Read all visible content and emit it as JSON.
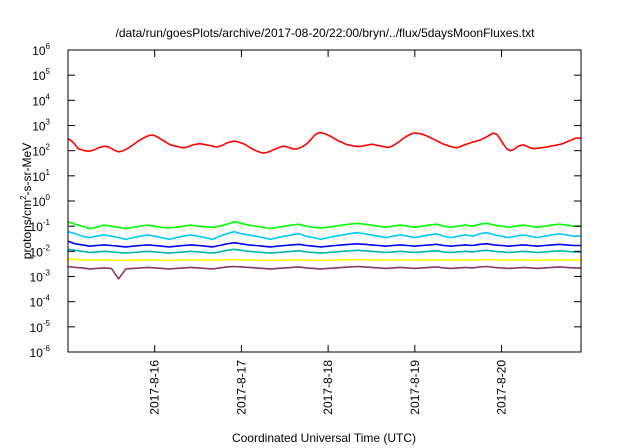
{
  "chart_data": {
    "type": "line",
    "title": "/data/run/goesPlots/archive/2017-08-20/22:00/bryn/../flux/5daysMoonFluxes.txt",
    "xlabel": "Coordinated Universal Time (UTC)",
    "ylabel": {
      "base": "protons/cm",
      "sup": "2",
      "rest": "-s-sr-MeV"
    },
    "x_range": [
      "2017-08-15 00:00",
      "2017-08-20 22:00"
    ],
    "x_ticks": [
      "2017-8-16",
      "2017-8-17",
      "2017-8-18",
      "2017-8-19",
      "2017-8-20"
    ],
    "y_scale": "log",
    "y_range": [
      1e-06,
      1000000.0
    ],
    "y_ticks": [
      {
        "base": "10",
        "exp": "-6",
        "value": 1e-06
      },
      {
        "base": "10",
        "exp": "-5",
        "value": 1e-05
      },
      {
        "base": "10",
        "exp": "-4",
        "value": 0.0001
      },
      {
        "base": "10",
        "exp": "-3",
        "value": 0.001
      },
      {
        "base": "10",
        "exp": "-2",
        "value": 0.01
      },
      {
        "base": "10",
        "exp": "-1",
        "value": 0.1
      },
      {
        "base": "10",
        "exp": "0",
        "value": 1
      },
      {
        "base": "10",
        "exp": "1",
        "value": 10
      },
      {
        "base": "10",
        "exp": "2",
        "value": 100
      },
      {
        "base": "10",
        "exp": "3",
        "value": 1000
      },
      {
        "base": "10",
        "exp": "4",
        "value": 10000
      },
      {
        "base": "10",
        "exp": "5",
        "value": 100000
      },
      {
        "base": "10",
        "exp": "6",
        "value": 1000000
      }
    ],
    "grid": false,
    "legend": "none",
    "series": [
      {
        "color": "#ff0000",
        "values": [
          300,
          250,
          180,
          120,
          110,
          100,
          95,
          100,
          110,
          130,
          140,
          150,
          140,
          120,
          100,
          90,
          95,
          110,
          130,
          160,
          200,
          250,
          300,
          350,
          400,
          420,
          380,
          320,
          260,
          220,
          180,
          160,
          150,
          140,
          130,
          135,
          150,
          170,
          180,
          190,
          180,
          170,
          160,
          150,
          140,
          150,
          170,
          200,
          220,
          240,
          230,
          210,
          190,
          160,
          130,
          110,
          95,
          85,
          80,
          85,
          95,
          110,
          125,
          140,
          150,
          140,
          125,
          115,
          120,
          135,
          160,
          200,
          280,
          400,
          500,
          520,
          480,
          420,
          360,
          300,
          250,
          220,
          190,
          170,
          160,
          150,
          145,
          150,
          160,
          170,
          180,
          170,
          160,
          150,
          140,
          135,
          150,
          180,
          220,
          280,
          350,
          420,
          480,
          500,
          480,
          450,
          400,
          350,
          300,
          260,
          220,
          190,
          170,
          150,
          140,
          130,
          140,
          160,
          180,
          200,
          220,
          240,
          260,
          300,
          350,
          420,
          500,
          450,
          300,
          180,
          120,
          100,
          110,
          140,
          160,
          170,
          150,
          130,
          120,
          125,
          130,
          135,
          140,
          150,
          160,
          170,
          180,
          200,
          230,
          260,
          300,
          320,
          310
        ]
      },
      {
        "color": "#00ff00",
        "values": [
          0.15,
          0.12,
          0.1,
          0.08,
          0.09,
          0.11,
          0.1,
          0.09,
          0.08,
          0.09,
          0.1,
          0.11,
          0.1,
          0.09,
          0.085,
          0.09,
          0.1,
          0.11,
          0.1,
          0.095,
          0.09,
          0.1,
          0.12,
          0.15,
          0.13,
          0.11,
          0.1,
          0.09,
          0.08,
          0.09,
          0.1,
          0.11,
          0.12,
          0.1,
          0.09,
          0.085,
          0.09,
          0.1,
          0.11,
          0.12,
          0.13,
          0.12,
          0.11,
          0.1,
          0.09,
          0.1,
          0.11,
          0.1,
          0.09,
          0.1,
          0.11,
          0.12,
          0.1,
          0.09,
          0.1,
          0.11,
          0.1,
          0.12,
          0.13,
          0.11,
          0.1,
          0.09,
          0.1,
          0.11,
          0.1,
          0.09,
          0.1,
          0.11,
          0.12,
          0.11,
          0.1,
          0.1
        ]
      },
      {
        "color": "#00c8ff",
        "values": [
          0.06,
          0.05,
          0.04,
          0.035,
          0.04,
          0.045,
          0.04,
          0.035,
          0.03,
          0.035,
          0.04,
          0.045,
          0.04,
          0.035,
          0.03,
          0.035,
          0.04,
          0.045,
          0.04,
          0.035,
          0.03,
          0.04,
          0.05,
          0.06,
          0.05,
          0.045,
          0.04,
          0.035,
          0.03,
          0.035,
          0.04,
          0.045,
          0.05,
          0.04,
          0.035,
          0.03,
          0.035,
          0.04,
          0.045,
          0.05,
          0.055,
          0.05,
          0.045,
          0.04,
          0.035,
          0.04,
          0.045,
          0.04,
          0.035,
          0.04,
          0.045,
          0.05,
          0.04,
          0.035,
          0.04,
          0.045,
          0.04,
          0.05,
          0.055,
          0.045,
          0.04,
          0.035,
          0.04,
          0.045,
          0.04,
          0.035,
          0.04,
          0.045,
          0.05,
          0.045,
          0.04,
          0.04
        ]
      },
      {
        "color": "#0000ff",
        "values": [
          0.025,
          0.02,
          0.018,
          0.016,
          0.017,
          0.018,
          0.017,
          0.016,
          0.015,
          0.016,
          0.017,
          0.018,
          0.017,
          0.016,
          0.015,
          0.016,
          0.017,
          0.018,
          0.017,
          0.016,
          0.015,
          0.017,
          0.02,
          0.022,
          0.02,
          0.018,
          0.017,
          0.016,
          0.015,
          0.016,
          0.017,
          0.018,
          0.019,
          0.017,
          0.016,
          0.015,
          0.016,
          0.017,
          0.018,
          0.019,
          0.02,
          0.019,
          0.018,
          0.017,
          0.016,
          0.017,
          0.018,
          0.017,
          0.016,
          0.017,
          0.018,
          0.019,
          0.017,
          0.016,
          0.017,
          0.018,
          0.017,
          0.019,
          0.02,
          0.018,
          0.017,
          0.016,
          0.017,
          0.018,
          0.017,
          0.016,
          0.017,
          0.018,
          0.019,
          0.018,
          0.017,
          0.017
        ]
      },
      {
        "color": "#00b4b4",
        "values": [
          0.012,
          0.011,
          0.01,
          0.009,
          0.0095,
          0.01,
          0.0095,
          0.009,
          0.0085,
          0.009,
          0.0095,
          0.01,
          0.0095,
          0.009,
          0.0085,
          0.009,
          0.0095,
          0.01,
          0.0095,
          0.009,
          0.0085,
          0.0095,
          0.011,
          0.012,
          0.011,
          0.01,
          0.0095,
          0.009,
          0.0085,
          0.009,
          0.0095,
          0.01,
          0.0105,
          0.0095,
          0.009,
          0.0085,
          0.009,
          0.0095,
          0.01,
          0.0105,
          0.011,
          0.0105,
          0.01,
          0.0095,
          0.009,
          0.0095,
          0.01,
          0.0095,
          0.009,
          0.0095,
          0.01,
          0.0105,
          0.0095,
          0.009,
          0.0095,
          0.01,
          0.0095,
          0.0105,
          0.011,
          0.01,
          0.0095,
          0.009,
          0.0095,
          0.01,
          0.0095,
          0.009,
          0.0095,
          0.01,
          0.0105,
          0.01,
          0.0095,
          0.0095
        ]
      },
      {
        "color": "#ffff00",
        "values": [
          0.005,
          0.0048,
          0.0046,
          0.0045,
          0.0045,
          0.0046,
          0.0045,
          0.0044,
          0.0044,
          0.0044,
          0.0045,
          0.0046,
          0.0045,
          0.0044,
          0.0044,
          0.0044,
          0.0045,
          0.0046,
          0.0045,
          0.0044,
          0.0044,
          0.0045,
          0.0046,
          0.0047,
          0.0046,
          0.0045,
          0.0045,
          0.0044,
          0.0044,
          0.0044,
          0.0045,
          0.0046,
          0.0046,
          0.0045,
          0.0044,
          0.0044,
          0.0044,
          0.0045,
          0.0046,
          0.0046,
          0.0047,
          0.0046,
          0.0046,
          0.0045,
          0.0044,
          0.0045,
          0.0046,
          0.0045,
          0.0044,
          0.0045,
          0.0046,
          0.0046,
          0.0045,
          0.0044,
          0.0045,
          0.0046,
          0.0045,
          0.0046,
          0.0047,
          0.0046,
          0.0045,
          0.0044,
          0.0045,
          0.0046,
          0.0045,
          0.0044,
          0.0045,
          0.0046,
          0.0046,
          0.0046,
          0.0045,
          0.0045
        ]
      },
      {
        "color": "#8b3a62",
        "values": [
          0.0025,
          0.0023,
          0.0022,
          0.002,
          0.0021,
          0.0022,
          0.0021,
          0.0008,
          0.002,
          0.0021,
          0.0022,
          0.0023,
          0.0022,
          0.0021,
          0.002,
          0.0021,
          0.0022,
          0.0023,
          0.0022,
          0.0021,
          0.002,
          0.0022,
          0.0024,
          0.0025,
          0.0024,
          0.0023,
          0.0022,
          0.0021,
          0.002,
          0.0021,
          0.0022,
          0.0023,
          0.0024,
          0.0022,
          0.0021,
          0.002,
          0.0021,
          0.0022,
          0.0023,
          0.0024,
          0.0025,
          0.0024,
          0.0023,
          0.0022,
          0.0021,
          0.0022,
          0.0023,
          0.0022,
          0.0021,
          0.0022,
          0.0023,
          0.0024,
          0.0022,
          0.0021,
          0.0022,
          0.0023,
          0.0022,
          0.0024,
          0.0025,
          0.0023,
          0.0022,
          0.0021,
          0.0022,
          0.0023,
          0.0022,
          0.0021,
          0.0022,
          0.0023,
          0.0024,
          0.0023,
          0.0022,
          0.0022
        ]
      }
    ]
  }
}
